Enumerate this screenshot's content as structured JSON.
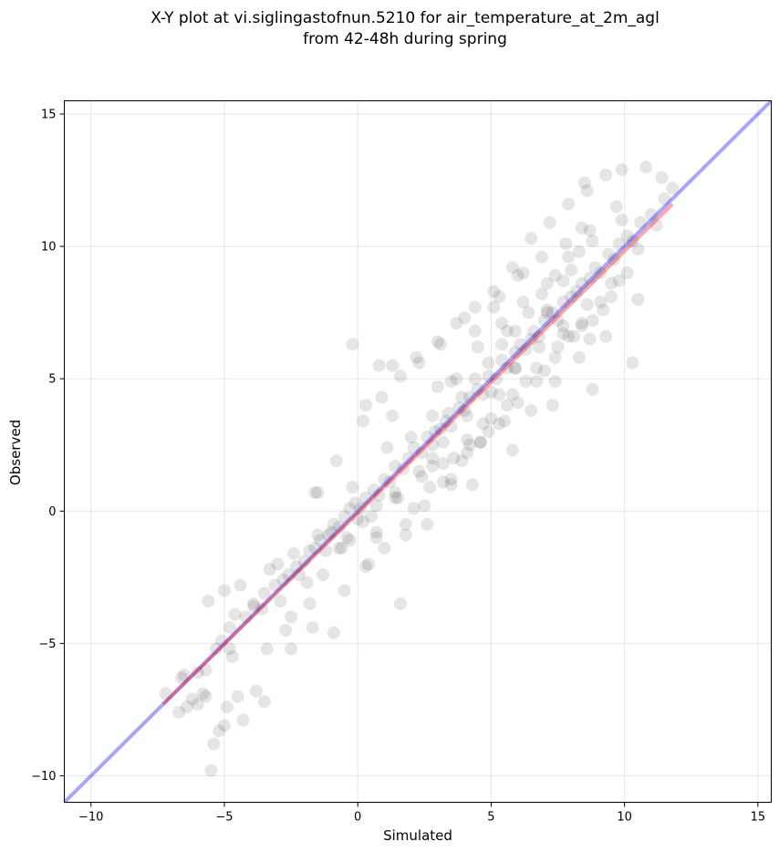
{
  "chart_data": {
    "type": "scatter",
    "title": "X-Y plot at vi.siglingastofnun.5210 for air_temperature_at_2m_agl",
    "subtitle": "from 42-48h during spring",
    "xlabel": "Simulated",
    "ylabel": "Observed",
    "xlim": [
      -11,
      15.5
    ],
    "ylim": [
      -11,
      15.5
    ],
    "xticks": [
      -10,
      -5,
      0,
      5,
      10,
      15
    ],
    "yticks": [
      -10,
      -5,
      0,
      5,
      10,
      15
    ],
    "xtick_labels": [
      "−10",
      "−5",
      "0",
      "5",
      "10",
      "15"
    ],
    "ytick_labels": [
      "−10",
      "−5",
      "0",
      "5",
      "10",
      "15"
    ],
    "grid": true,
    "point_color": "#000000",
    "point_alpha": 0.1,
    "identity_line": {
      "x": [
        -11,
        15.5
      ],
      "y": [
        -11,
        15.5
      ],
      "color": "#0000ff",
      "alpha": 0.35
    },
    "fit_line": {
      "x": [
        -7.3,
        11.8
      ],
      "y": [
        -7.3,
        11.6
      ],
      "color": "#ff0000",
      "alpha": 0.35
    },
    "points_x": [
      -5.5,
      -5.4,
      -5.2,
      -5.0,
      -4.9,
      -4.5,
      -4.3,
      -6.2,
      -6.6,
      -6.0,
      -6.4,
      -5.8,
      -5.7,
      -4.8,
      -4.7,
      -3.8,
      -3.5,
      -3.4,
      -2.7,
      -2.5,
      -7.2,
      -6.7,
      -6.5,
      -6.0,
      -5.7,
      -5.3,
      -5.1,
      -4.8,
      -4.6,
      -4.2,
      -3.9,
      -3.6,
      -3.5,
      -3.1,
      -2.8,
      -2.6,
      -2.3,
      -2.0,
      -1.8,
      -1.6,
      -1.4,
      -1.1,
      -0.9,
      -0.7,
      -0.5,
      -0.3,
      -0.1,
      0.1,
      0.3,
      0.6,
      0.8,
      1.0,
      1.2,
      1.4,
      1.7,
      1.9,
      2.1,
      2.4,
      2.6,
      2.8,
      3.1,
      3.3,
      3.5,
      3.8,
      4.0,
      4.2,
      4.5,
      4.7,
      4.9,
      5.2,
      5.4,
      5.6,
      5.9,
      6.1,
      6.3,
      6.6,
      6.8,
      7.0,
      7.3,
      7.5,
      7.7,
      8.0,
      8.2,
      8.4,
      8.7,
      8.9,
      9.1,
      9.4,
      9.6,
      9.8,
      10.1,
      10.3,
      10.6,
      11.0,
      11.5,
      11.8,
      -5.6,
      -5.0,
      -4.4,
      -3.9,
      -3.3,
      -2.9,
      -2.4,
      -1.9,
      -1.5,
      -1.0,
      -0.6,
      -0.2,
      0.2,
      0.7,
      1.1,
      1.5,
      2.0,
      2.4,
      2.8,
      3.2,
      3.7,
      4.1,
      4.5,
      5.0,
      5.4,
      5.8,
      6.2,
      6.7,
      7.1,
      7.5,
      8.0,
      8.4,
      8.8,
      9.2,
      9.7,
      10.1,
      -1.6,
      -1.3,
      -0.8,
      -0.3,
      0.3,
      0.7,
      1.3,
      1.8,
      2.2,
      2.7,
      3.1,
      3.6,
      4.0,
      4.6,
      5.1,
      5.5,
      6.0,
      6.5,
      6.9,
      7.4,
      7.8,
      8.3,
      8.7,
      9.3,
      9.9,
      10.5,
      -1.7,
      -0.5,
      0.3,
      1.0,
      1.8,
      2.5,
      3.2,
      3.9,
      4.6,
      5.3,
      6.0,
      6.7,
      7.4,
      8.1,
      8.8,
      9.5,
      0.2,
      0.9,
      1.6,
      2.3,
      3.0,
      3.7,
      4.4,
      5.1,
      5.8,
      6.5,
      7.2,
      7.9,
      8.6,
      9.3,
      2.9,
      3.4,
      3.9,
      4.4,
      4.9,
      5.4,
      5.9,
      6.4,
      6.9,
      7.4,
      7.9,
      8.4,
      3.5,
      4.1,
      4.7,
      5.3,
      5.9,
      6.5,
      7.1,
      7.7,
      8.3,
      -0.7,
      0.0,
      0.7,
      1.4,
      2.1,
      2.8,
      3.5,
      4.2,
      4.9,
      5.6,
      6.3,
      7.0,
      7.7,
      8.4,
      9.1,
      9.8,
      10.5,
      11.2,
      -0.2,
      1.3,
      2.8,
      4.3,
      5.8,
      7.3,
      8.8,
      10.3,
      -1.5,
      0.8,
      3.0,
      5.6,
      8.5,
      -2.5,
      -1.8,
      -0.9,
      0.4,
      1.6,
      2.6,
      3.5,
      4.4,
      5.3,
      6.2,
      7.1,
      7.9,
      8.7,
      9.9,
      10.8,
      11.4,
      -3.0,
      -2.2,
      -1.2,
      -0.4,
      0.5,
      1.4,
      2.3,
      3.2,
      4.1,
      5.0,
      5.9,
      6.8,
      7.7,
      8.6,
      9.5
    ],
    "points_y": [
      -9.8,
      -8.8,
      -8.3,
      -8.1,
      -7.4,
      -7.0,
      -7.9,
      -7.1,
      -6.3,
      -7.3,
      -7.4,
      -6.9,
      -7.0,
      -5.2,
      -5.5,
      -6.8,
      -7.2,
      -5.2,
      -4.5,
      -5.2,
      -6.9,
      -7.6,
      -6.2,
      -6.1,
      -6.0,
      -5.2,
      -4.9,
      -4.4,
      -3.9,
      -4.0,
      -3.5,
      -3.7,
      -3.1,
      -2.8,
      -2.6,
      -2.4,
      -2.1,
      -1.9,
      -1.5,
      -1.4,
      -1.1,
      -0.9,
      -0.5,
      -0.6,
      -0.2,
      0.1,
      0.3,
      0.1,
      0.5,
      0.8,
      0.6,
      1.2,
      1.1,
      1.7,
      1.6,
      2.0,
      2.4,
      2.2,
      2.8,
      2.5,
      3.1,
      3.4,
      3.2,
      3.9,
      3.8,
      4.3,
      4.6,
      4.4,
      5.1,
      5.0,
      5.7,
      5.4,
      6.0,
      6.3,
      6.1,
      6.8,
      6.6,
      7.2,
      7.5,
      7.2,
      7.9,
      8.1,
      8.3,
      8.6,
      8.8,
      9.2,
      9.0,
      9.7,
      9.5,
      10.1,
      10.4,
      10.2,
      10.9,
      11.2,
      11.8,
      12.2,
      -3.4,
      -3.0,
      -2.8,
      -3.6,
      -2.2,
      -3.4,
      -1.6,
      -2.7,
      -0.9,
      -0.8,
      -1.4,
      0.9,
      -0.4,
      0.2,
      2.4,
      0.5,
      2.8,
      1.3,
      3.6,
      1.8,
      5.0,
      2.7,
      6.2,
      3.5,
      7.1,
      4.4,
      7.9,
      5.4,
      8.6,
      6.2,
      9.1,
      7.0,
      10.2,
      7.6,
      11.5,
      9.0,
      0.7,
      -2.4,
      1.9,
      -1.1,
      4.0,
      -0.8,
      5.5,
      -0.5,
      5.8,
      0.9,
      6.3,
      2.0,
      7.3,
      2.6,
      7.7,
      3.4,
      8.9,
      3.8,
      9.6,
      4.9,
      10.1,
      5.8,
      10.6,
      6.6,
      11.0,
      8.0,
      -4.4,
      -3.0,
      -2.1,
      -1.4,
      -0.9,
      0.2,
      1.1,
      1.9,
      2.6,
      3.3,
      4.1,
      4.9,
      5.8,
      6.6,
      7.2,
      8.1,
      3.4,
      4.3,
      5.1,
      5.6,
      6.4,
      7.1,
      7.7,
      8.3,
      9.2,
      10.3,
      10.9,
      11.6,
      12.1,
      12.7,
      3.0,
      3.7,
      4.3,
      5.0,
      5.6,
      6.3,
      6.8,
      7.5,
      8.2,
      8.9,
      9.6,
      10.7,
      1.2,
      2.2,
      3.3,
      4.4,
      5.4,
      6.5,
      7.5,
      8.7,
      9.8,
      -1.4,
      -0.3,
      -1.0,
      0.7,
      0.1,
      1.7,
      1.0,
      2.5,
      3.0,
      4.0,
      4.9,
      5.3,
      6.7,
      7.1,
      7.9,
      8.7,
      9.9,
      10.8,
      6.3,
      3.6,
      2.0,
      1.0,
      2.3,
      4.0,
      4.6,
      5.6,
      0.7,
      5.5,
      4.7,
      6.8,
      12.4,
      -4.0,
      -3.5,
      -4.6,
      -2.0,
      -3.5,
      -0.5,
      4.9,
      6.8,
      8.1,
      9.0,
      7.6,
      6.6,
      6.5,
      12.9,
      13.0,
      12.6,
      -2.0,
      -2.4,
      -1.5,
      -1.0,
      -0.2,
      0.5,
      1.5,
      2.6,
      3.6,
      4.5,
      5.4,
      6.2,
      7.0,
      7.8,
      8.6
    ]
  }
}
